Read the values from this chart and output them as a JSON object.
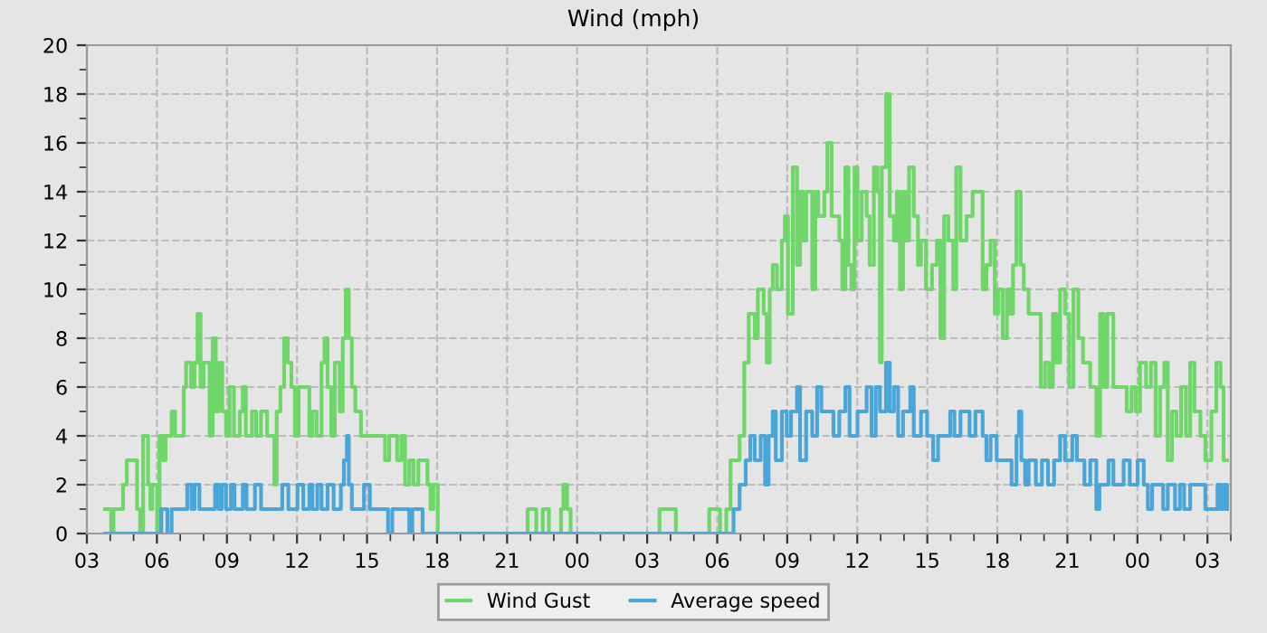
{
  "chart_data": {
    "type": "step",
    "title": "Wind (mph)",
    "xlim": [
      3,
      52
    ],
    "ylim": [
      0,
      20
    ],
    "xticks": [
      {
        "value": 3,
        "label": "03"
      },
      {
        "value": 4,
        "label": null
      },
      {
        "value": 5,
        "label": null
      },
      {
        "value": 6,
        "label": "06"
      },
      {
        "value": 7,
        "label": null
      },
      {
        "value": 8,
        "label": null
      },
      {
        "value": 9,
        "label": "09"
      },
      {
        "value": 10,
        "label": null
      },
      {
        "value": 11,
        "label": null
      },
      {
        "value": 12,
        "label": "12"
      },
      {
        "value": 13,
        "label": null
      },
      {
        "value": 14,
        "label": null
      },
      {
        "value": 15,
        "label": "15"
      },
      {
        "value": 16,
        "label": null
      },
      {
        "value": 17,
        "label": null
      },
      {
        "value": 18,
        "label": "18"
      },
      {
        "value": 19,
        "label": null
      },
      {
        "value": 20,
        "label": null
      },
      {
        "value": 21,
        "label": "21"
      },
      {
        "value": 22,
        "label": null
      },
      {
        "value": 23,
        "label": null
      },
      {
        "value": 24,
        "label": "00"
      },
      {
        "value": 25,
        "label": null
      },
      {
        "value": 26,
        "label": null
      },
      {
        "value": 27,
        "label": "03"
      },
      {
        "value": 28,
        "label": null
      },
      {
        "value": 29,
        "label": null
      },
      {
        "value": 30,
        "label": "06"
      },
      {
        "value": 31,
        "label": null
      },
      {
        "value": 32,
        "label": null
      },
      {
        "value": 33,
        "label": "09"
      },
      {
        "value": 34,
        "label": null
      },
      {
        "value": 35,
        "label": null
      },
      {
        "value": 36,
        "label": "12"
      },
      {
        "value": 37,
        "label": null
      },
      {
        "value": 38,
        "label": null
      },
      {
        "value": 39,
        "label": "15"
      },
      {
        "value": 40,
        "label": null
      },
      {
        "value": 41,
        "label": null
      },
      {
        "value": 42,
        "label": "18"
      },
      {
        "value": 43,
        "label": null
      },
      {
        "value": 44,
        "label": null
      },
      {
        "value": 45,
        "label": "21"
      },
      {
        "value": 46,
        "label": null
      },
      {
        "value": 47,
        "label": null
      },
      {
        "value": 48,
        "label": "00"
      },
      {
        "value": 49,
        "label": null
      },
      {
        "value": 50,
        "label": null
      },
      {
        "value": 51,
        "label": "03"
      },
      {
        "value": 52,
        "label": null
      }
    ],
    "yticks": [
      0,
      {
        "value": 1,
        "label": null
      },
      2,
      {
        "value": 3,
        "label": null
      },
      4,
      {
        "value": 5,
        "label": null
      },
      6,
      {
        "value": 7,
        "label": null
      },
      8,
      {
        "value": 9,
        "label": null
      },
      10,
      {
        "value": 11,
        "label": null
      },
      12,
      {
        "value": 13,
        "label": null
      },
      14,
      {
        "value": 15,
        "label": null
      },
      16,
      {
        "value": 17,
        "label": null
      },
      18,
      {
        "value": 19,
        "label": null
      },
      20
    ],
    "grid": true,
    "legend": "bottom",
    "marker": "none",
    "line_style": "solid",
    "series": [
      {
        "name": "Wind Gust",
        "color": "#6fd66a",
        "x": [
          3.78,
          4.04,
          4.14,
          4.55,
          4.71,
          5.15,
          5.28,
          5.41,
          5.62,
          5.72,
          5.8,
          6.01,
          6.11,
          6.26,
          6.37,
          6.63,
          6.78,
          7.15,
          7.25,
          7.46,
          7.61,
          7.74,
          7.87,
          8.0,
          8.26,
          8.39,
          8.52,
          8.65,
          8.8,
          8.96,
          9.11,
          9.3,
          9.55,
          9.68,
          9.81,
          10.07,
          10.25,
          10.46,
          10.72,
          11.03,
          11.13,
          11.29,
          11.45,
          11.6,
          11.76,
          11.91,
          12.07,
          12.4,
          12.53,
          12.66,
          12.84,
          13.05,
          13.18,
          13.31,
          13.47,
          13.62,
          13.83,
          13.96,
          14.09,
          14.22,
          14.35,
          14.5,
          14.74,
          15.77,
          15.95,
          16.29,
          16.47,
          16.63,
          16.81,
          16.99,
          17.2,
          17.59,
          17.72,
          17.84,
          18.03,
          21.88,
          22.25,
          22.53,
          22.79,
          23.31,
          23.41,
          23.57,
          23.72,
          27.53,
          28.23,
          29.66,
          30.12,
          30.39,
          30.57,
          30.96,
          31.16,
          31.35,
          31.61,
          31.74,
          31.99,
          32.12,
          32.25,
          32.38,
          32.56,
          32.77,
          32.9,
          33.03,
          33.24,
          33.42,
          33.55,
          33.68,
          33.81,
          34.07,
          34.2,
          34.33,
          34.59,
          34.72,
          34.9,
          35.23,
          35.36,
          35.49,
          35.62,
          35.75,
          35.88,
          36.01,
          36.19,
          36.4,
          36.53,
          36.71,
          36.87,
          36.97,
          37.05,
          37.23,
          37.39,
          37.57,
          37.7,
          37.83,
          37.96,
          38.09,
          38.22,
          38.42,
          38.6,
          38.73,
          38.94,
          39.2,
          39.41,
          39.56,
          39.72,
          39.9,
          40.11,
          40.24,
          40.42,
          40.68,
          40.94,
          41.37,
          41.53,
          41.71,
          41.89,
          42.04,
          42.23,
          42.41,
          42.56,
          42.67,
          42.82,
          43.0,
          43.13,
          43.34,
          43.86,
          44.04,
          44.22,
          44.38,
          44.53,
          44.69,
          44.9,
          45.08,
          45.26,
          45.47,
          45.67,
          45.98,
          46.24,
          46.4,
          46.55,
          46.71,
          46.97,
          47.54,
          47.75,
          47.93,
          48.11,
          48.37,
          48.58,
          48.78,
          48.97,
          49.15,
          49.3,
          49.48,
          49.67,
          49.87,
          50.08,
          50.26,
          50.44,
          50.7,
          50.91,
          51.17,
          51.38,
          51.56,
          51.69,
          51.84
        ],
        "values": [
          1,
          0,
          1,
          2,
          3,
          1,
          0,
          4,
          2,
          1,
          2,
          0,
          4,
          3,
          4,
          5,
          4,
          6,
          7,
          6,
          7,
          9,
          6,
          7,
          4,
          8,
          5,
          7,
          5,
          4,
          6,
          4,
          5,
          6,
          4,
          5,
          4,
          5,
          4,
          2,
          5,
          6,
          8,
          7,
          6,
          4,
          6,
          6,
          4,
          5,
          4,
          7,
          8,
          6,
          4,
          7,
          5,
          8,
          10,
          8,
          6,
          5,
          4,
          3,
          4,
          3,
          4,
          2,
          3,
          2,
          3,
          2,
          1,
          2,
          0,
          1,
          0,
          1,
          0,
          1,
          2,
          1,
          0,
          1,
          0,
          1,
          0,
          1,
          3,
          4,
          7,
          9,
          8,
          10,
          9,
          7,
          10,
          11,
          10,
          12,
          13,
          9,
          15,
          11,
          14,
          12,
          14,
          10,
          14,
          13,
          14,
          16,
          13,
          12,
          10,
          15,
          11,
          10,
          15,
          12,
          14,
          13,
          11,
          15,
          14,
          7,
          15,
          18,
          13,
          12,
          14,
          10,
          14,
          12,
          15,
          13,
          11,
          12,
          10,
          11,
          12,
          8,
          13,
          12,
          10,
          15,
          12,
          13,
          14,
          10,
          11,
          12,
          9,
          10,
          8,
          10,
          9,
          11,
          14,
          11,
          10,
          9,
          6,
          7,
          6,
          9,
          7,
          10,
          9,
          6,
          10,
          8,
          7,
          6,
          4,
          9,
          6,
          9,
          6,
          5,
          6,
          5,
          7,
          6,
          7,
          4,
          6,
          7,
          3,
          5,
          4,
          6,
          4,
          7,
          5,
          4,
          3,
          5,
          7,
          6,
          3,
          3
        ]
      },
      {
        "name": "Average speed",
        "color": "#4aa6d8",
        "x": [
          3.78,
          6.19,
          6.45,
          6.63,
          7.3,
          7.48,
          7.61,
          7.82,
          8.49,
          8.65,
          8.78,
          8.96,
          9.17,
          9.32,
          9.68,
          9.84,
          10.2,
          10.46,
          11.37,
          11.63,
          12.02,
          12.27,
          12.53,
          12.66,
          12.87,
          13.05,
          13.31,
          13.57,
          13.88,
          14.01,
          14.14,
          14.22,
          14.35,
          14.87,
          15.12,
          15.9,
          16.08,
          16.81,
          16.94,
          17.38,
          30.7,
          30.96,
          31.22,
          31.42,
          31.61,
          31.86,
          32.05,
          32.2,
          32.38,
          32.51,
          32.77,
          32.98,
          33.16,
          33.42,
          33.55,
          33.81,
          34.07,
          34.28,
          34.46,
          34.98,
          35.23,
          35.49,
          35.67,
          36.01,
          36.4,
          36.61,
          36.79,
          36.97,
          37.23,
          37.39,
          37.57,
          37.75,
          37.96,
          38.27,
          38.42,
          38.73,
          38.99,
          39.25,
          39.46,
          39.98,
          40.16,
          40.42,
          40.81,
          41.06,
          41.37,
          41.53,
          41.71,
          41.97,
          42.61,
          42.82,
          42.93,
          43.03,
          43.19,
          43.34,
          43.65,
          43.91,
          44.17,
          44.43,
          44.69,
          44.9,
          45.21,
          45.41,
          45.73,
          45.98,
          46.24,
          46.37,
          46.76,
          46.97,
          47.41,
          47.67,
          48.01,
          48.27,
          48.45,
          48.63,
          49.1,
          49.3,
          49.61,
          49.82,
          50.0,
          50.26,
          50.91,
          51.43,
          51.56,
          51.69,
          51.84
        ],
        "values": [
          0,
          1,
          0,
          1,
          2,
          1,
          2,
          1,
          2,
          1,
          2,
          1,
          2,
          1,
          2,
          1,
          2,
          1,
          2,
          1,
          2,
          1,
          2,
          1,
          2,
          1,
          2,
          1,
          2,
          3,
          4,
          2,
          1,
          2,
          1,
          0,
          1,
          0,
          1,
          0,
          1,
          2,
          3,
          4,
          3,
          4,
          2,
          4,
          5,
          3,
          5,
          4,
          5,
          6,
          3,
          5,
          4,
          6,
          5,
          4,
          5,
          6,
          4,
          5,
          6,
          4,
          6,
          5,
          7,
          5,
          6,
          4,
          5,
          6,
          4,
          5,
          4,
          3,
          4,
          5,
          4,
          5,
          4,
          5,
          4,
          3,
          4,
          3,
          2,
          4,
          5,
          3,
          2,
          3,
          2,
          3,
          2,
          3,
          4,
          3,
          4,
          3,
          2,
          3,
          1,
          2,
          3,
          2,
          3,
          2,
          3,
          2,
          1,
          2,
          1,
          2,
          1,
          2,
          1,
          2,
          1,
          2,
          1,
          2,
          1
        ]
      }
    ]
  }
}
